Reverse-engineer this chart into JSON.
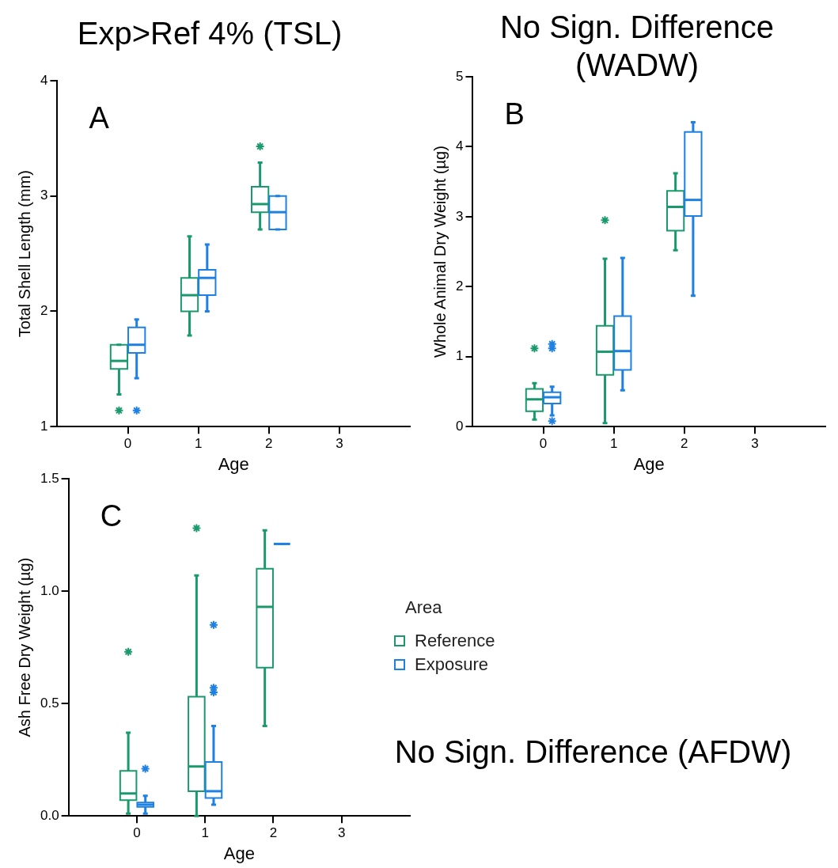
{
  "chart_data": [
    {
      "type": "box",
      "title": "Exp>Ref 4% (TSL)",
      "xlabel": "Age",
      "ylabel": "Total Shell Length (mm)",
      "categories": [
        "0",
        "1",
        "2",
        "3"
      ],
      "ylim": [
        1,
        4
      ],
      "yticks": [
        1,
        2,
        3,
        4
      ],
      "marker": "star",
      "annotations": [
        "A"
      ],
      "series": [
        {
          "color": "#1a9a6c",
          "boxes": [
            {
              "low": 1.28,
              "q1": 1.5,
              "median": 1.57,
              "q3": 1.71,
              "high": 1.71,
              "outliers": [
                1.14
              ]
            },
            {
              "low": 1.79,
              "q1": 2.0,
              "median": 2.14,
              "q3": 2.29,
              "high": 2.65
            },
            {
              "low": 2.71,
              "q1": 2.86,
              "median": 2.93,
              "q3": 3.08,
              "high": 3.29,
              "outliers": [
                3.43
              ]
            },
            null
          ]
        },
        {
          "color": "#1e80e2",
          "boxes": [
            {
              "low": 1.42,
              "q1": 1.64,
              "median": 1.71,
              "q3": 1.86,
              "high": 1.93,
              "outliers": [
                1.14
              ]
            },
            {
              "low": 2.0,
              "q1": 2.14,
              "median": 2.29,
              "q3": 2.36,
              "high": 2.58
            },
            {
              "low": 2.71,
              "q1": 2.71,
              "median": 2.86,
              "q3": 3.0,
              "high": 3.0
            },
            null
          ]
        }
      ]
    },
    {
      "type": "box",
      "title": "No Sign. Difference (WADW)",
      "xlabel": "Age",
      "ylabel": "Whole Animal Dry Weight (µg)",
      "categories": [
        "0",
        "1",
        "2",
        "3"
      ],
      "ylim": [
        0,
        5
      ],
      "yticks": [
        0,
        1,
        2,
        3,
        4,
        5
      ],
      "marker": "star",
      "annotations": [
        "B"
      ],
      "series": [
        {
          "color": "#1a9a6c",
          "boxes": [
            {
              "low": 0.1,
              "q1": 0.22,
              "median": 0.39,
              "q3": 0.54,
              "high": 0.62,
              "outliers": [
                1.12
              ]
            },
            {
              "low": 0.05,
              "q1": 0.74,
              "median": 1.07,
              "q3": 1.44,
              "high": 2.4,
              "outliers": [
                2.95
              ]
            },
            {
              "low": 2.52,
              "q1": 2.8,
              "median": 3.14,
              "q3": 3.37,
              "high": 3.62
            },
            null
          ]
        },
        {
          "color": "#1e80e2",
          "boxes": [
            {
              "low": 0.16,
              "q1": 0.33,
              "median": 0.42,
              "q3": 0.49,
              "high": 0.57,
              "outliers": [
                1.18,
                1.12,
                0.08
              ]
            },
            {
              "low": 0.52,
              "q1": 0.81,
              "median": 1.08,
              "q3": 1.58,
              "high": 2.41
            },
            {
              "low": 1.87,
              "q1": 3.01,
              "median": 3.24,
              "q3": 4.21,
              "high": 4.35
            },
            null
          ]
        }
      ]
    },
    {
      "type": "box",
      "title": "No Sign. Difference (AFDW)",
      "xlabel": "Age",
      "ylabel": "Ash Free Dry Weight (µg)",
      "categories": [
        "0",
        "1",
        "2",
        "3"
      ],
      "ylim": [
        0,
        1.5
      ],
      "yticks": [
        {
          "value": 0,
          "label": "0.0"
        },
        {
          "value": 0.5,
          "label": "0.5"
        },
        {
          "value": 1,
          "label": "1.0"
        },
        {
          "value": 1.5,
          "label": "1.5"
        }
      ],
      "marker": "star",
      "annotations": [
        "C"
      ],
      "legend": "right",
      "legend_title": "Area",
      "series": [
        {
          "name": "Reference",
          "color": "#1a9a6c",
          "boxes": [
            {
              "low": 0.01,
              "q1": 0.07,
              "median": 0.1,
              "q3": 0.2,
              "high": 0.37,
              "outliers": [
                0.73
              ]
            },
            {
              "low": 0.0,
              "q1": 0.11,
              "median": 0.22,
              "q3": 0.53,
              "high": 1.07,
              "outliers": [
                1.28
              ]
            },
            {
              "low": 0.4,
              "q1": 0.66,
              "median": 0.93,
              "q3": 1.1,
              "high": 1.27
            },
            null
          ]
        },
        {
          "name": "Exposure",
          "color": "#1e80e2",
          "boxes": [
            {
              "low": 0.01,
              "q1": 0.04,
              "median": 0.05,
              "q3": 0.06,
              "high": 0.09,
              "outliers": [
                0.21
              ]
            },
            {
              "low": 0.05,
              "q1": 0.08,
              "median": 0.11,
              "q3": 0.24,
              "high": 0.4,
              "outliers": [
                0.85,
                0.57,
                0.55
              ]
            },
            {
              "low": 1.21,
              "q1": 1.21,
              "median": 1.21,
              "q3": 1.21,
              "high": 1.21
            },
            null
          ]
        }
      ]
    }
  ]
}
